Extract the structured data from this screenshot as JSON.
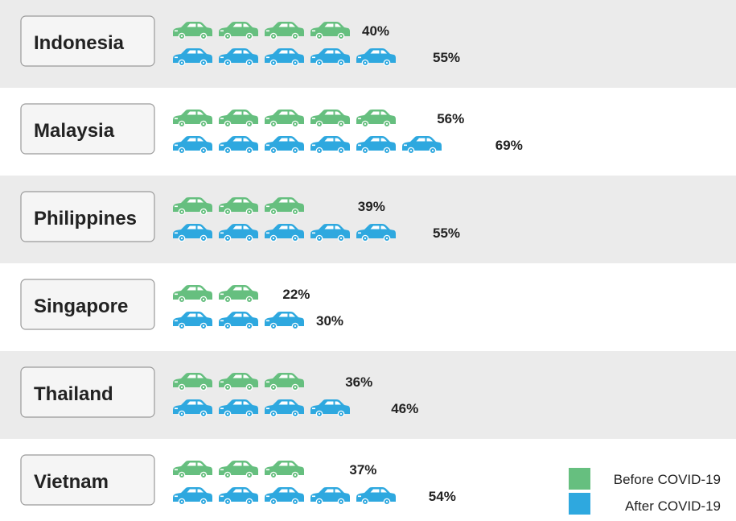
{
  "colors": {
    "before": "#66bf7f",
    "after": "#2ea8df",
    "band": "#ebebeb",
    "box_fill": "#f5f5f5",
    "box_stroke": "#9a9a9a"
  },
  "icon": "car-icon",
  "chart_data": {
    "type": "pictograph",
    "unit_per_icon_percent": 10,
    "categories": [
      "Indonesia",
      "Malaysia",
      "Philippines",
      "Singapore",
      "Thailand",
      "Vietnam"
    ],
    "series": [
      {
        "name": "Before COVID-19",
        "values": [
          40,
          56,
          39,
          22,
          36,
          37
        ],
        "labels": [
          "40%",
          "56%",
          "39%",
          "22%",
          "36%",
          "37%"
        ]
      },
      {
        "name": "After COVID-19",
        "values": [
          55,
          69,
          55,
          30,
          46,
          54
        ],
        "labels": [
          "55%",
          "69%",
          "55%",
          "30%",
          "46%",
          "54%"
        ]
      }
    ],
    "legend": {
      "position": "bottom-right",
      "items": [
        "Before COVID-19",
        "After COVID-19"
      ]
    }
  }
}
